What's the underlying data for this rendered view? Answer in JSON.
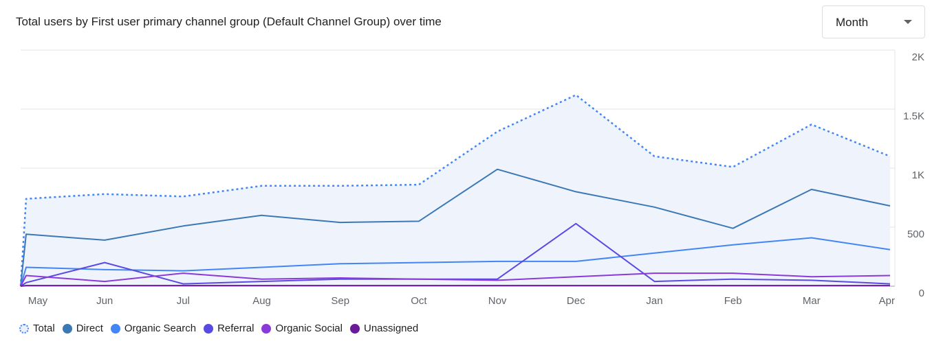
{
  "header": {
    "title": "Total users by First user primary channel group (Default Channel Group) over time"
  },
  "period_select": {
    "value": "Month",
    "icon": "chevron-down-icon"
  },
  "legend": [
    {
      "label": "Total",
      "color": "#4285f4",
      "style": "dotted"
    },
    {
      "label": "Direct",
      "color": "#3b78b4"
    },
    {
      "label": "Organic Search",
      "color": "#4285f4"
    },
    {
      "label": "Referral",
      "color": "#5a4ae3"
    },
    {
      "label": "Organic Social",
      "color": "#8a3ad8"
    },
    {
      "label": "Unassigned",
      "color": "#6a1b9a"
    }
  ],
  "chart_data": {
    "type": "line",
    "title": "Total users by First user primary channel group (Default Channel Group) over time",
    "categories": [
      "May",
      "Jun",
      "Jul",
      "Aug",
      "Sep",
      "Oct",
      "Nov",
      "Dec",
      "Jan",
      "Feb",
      "Mar",
      "Apr"
    ],
    "y_ticks": [
      "0",
      "500",
      "1K",
      "1.5K",
      "2K"
    ],
    "ylim": [
      0,
      2000
    ],
    "y_axis_position": "right",
    "grid": true,
    "legend_position": "bottom-left",
    "series": [
      {
        "name": "Total",
        "color": "#4285f4",
        "dashed": true,
        "area": true,
        "values": [
          740,
          780,
          760,
          850,
          850,
          860,
          1310,
          1620,
          1100,
          1010,
          1370,
          1100
        ]
      },
      {
        "name": "Direct",
        "color": "#3b78b4",
        "values": [
          440,
          390,
          510,
          600,
          540,
          550,
          990,
          800,
          670,
          490,
          820,
          680
        ]
      },
      {
        "name": "Organic Search",
        "color": "#4285f4",
        "values": [
          160,
          140,
          130,
          160,
          190,
          200,
          210,
          210,
          280,
          350,
          410,
          310
        ]
      },
      {
        "name": "Referral",
        "color": "#5a4ae3",
        "values": [
          30,
          200,
          20,
          40,
          60,
          60,
          60,
          530,
          40,
          60,
          50,
          20
        ]
      },
      {
        "name": "Organic Social",
        "color": "#8a3ad8",
        "values": [
          90,
          40,
          110,
          60,
          70,
          60,
          50,
          80,
          110,
          110,
          80,
          90
        ]
      },
      {
        "name": "Unassigned",
        "color": "#6a1b9a",
        "values": [
          5,
          5,
          5,
          5,
          5,
          5,
          5,
          5,
          5,
          5,
          5,
          5
        ]
      }
    ]
  }
}
